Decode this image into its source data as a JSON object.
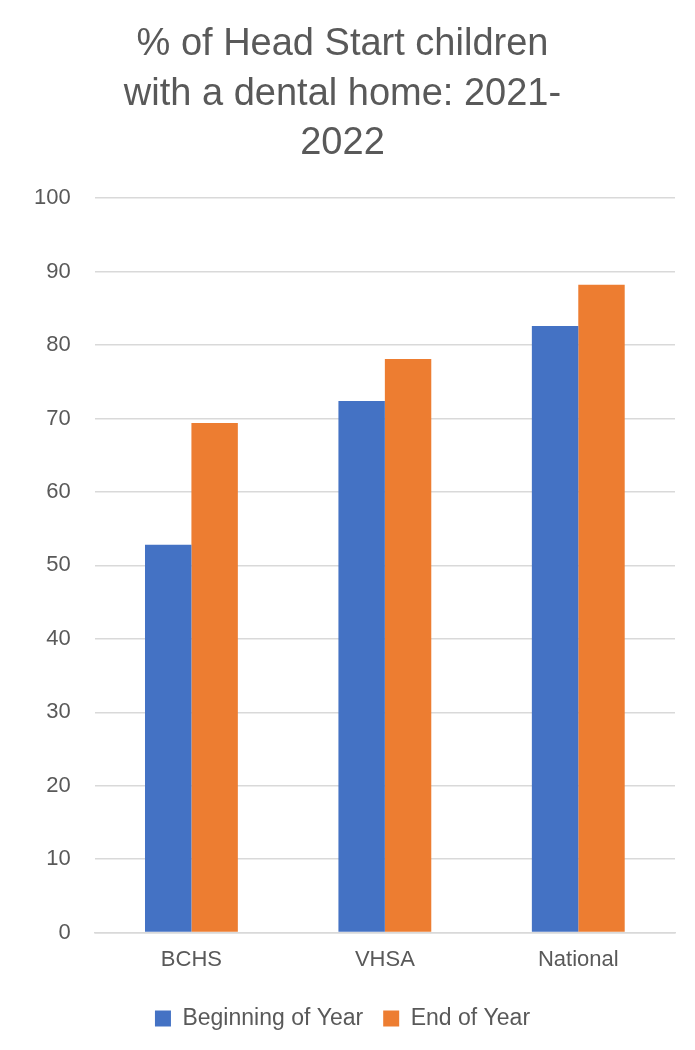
{
  "chart_data": {
    "type": "bar",
    "title": [
      "% of Head Start children",
      "with a dental home: 2021-",
      "2022"
    ],
    "categories": [
      "BCHS",
      "VHSA",
      "National"
    ],
    "series": [
      {
        "name": "Beginning of Year",
        "color": "#4472c4",
        "values": [
          52.8,
          72.4,
          82.6
        ]
      },
      {
        "name": "End of Year",
        "color": "#ed7d31",
        "values": [
          69.4,
          78.1,
          88.2
        ]
      }
    ],
    "ylim": [
      0,
      100
    ],
    "yticks": [
      0,
      10,
      20,
      30,
      40,
      50,
      60,
      70,
      80,
      90,
      100
    ],
    "grid": true,
    "legend": "bottom"
  }
}
